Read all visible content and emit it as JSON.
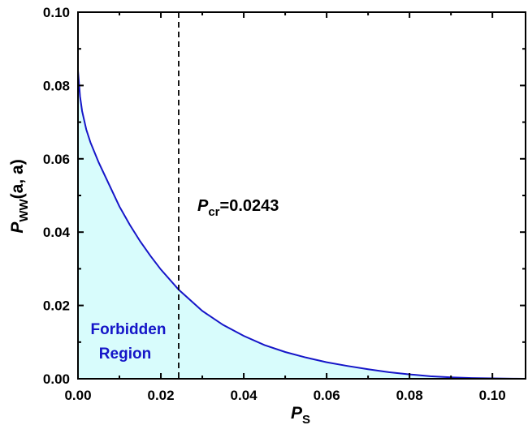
{
  "chart_data": {
    "type": "area",
    "xlabel": {
      "main": "P",
      "sub": "S"
    },
    "ylabel": {
      "main": "P",
      "sub": "WW",
      "suffix": "(a, a)"
    },
    "xlim": [
      0,
      0.108
    ],
    "ylim": [
      0,
      0.1
    ],
    "xticks": [
      "0.00",
      "0.02",
      "0.04",
      "0.06",
      "0.08",
      "0.10"
    ],
    "yticks": [
      "0.00",
      "0.02",
      "0.04",
      "0.06",
      "0.08",
      "0.10"
    ],
    "xtick_values": [
      0,
      0.02,
      0.04,
      0.06,
      0.08,
      0.1
    ],
    "ytick_values": [
      0,
      0.02,
      0.04,
      0.06,
      0.08,
      0.1
    ],
    "series": [
      {
        "x": [
          0,
          0.0005,
          0.001,
          0.002,
          0.003,
          0.005,
          0.0075,
          0.01,
          0.0125,
          0.015,
          0.0175,
          0.02,
          0.0243,
          0.03,
          0.035,
          0.04,
          0.045,
          0.05,
          0.055,
          0.06,
          0.065,
          0.07,
          0.075,
          0.08,
          0.085,
          0.09,
          0.095,
          0.1,
          0.105,
          0.108
        ],
        "y": [
          0.084,
          0.077,
          0.073,
          0.068,
          0.0645,
          0.059,
          0.053,
          0.047,
          0.042,
          0.0375,
          0.0335,
          0.0298,
          0.0243,
          0.0185,
          0.0147,
          0.0117,
          0.0092,
          0.0073,
          0.0058,
          0.0045,
          0.0035,
          0.0026,
          0.0018,
          0.0012,
          0.0007,
          0.0004,
          0.0002,
          0.0001,
          3e-05,
          0.0
        ]
      }
    ],
    "colors": {
      "curve": "#1515c8",
      "fill": "#d8fcfc",
      "region_label": "#1515c8",
      "critical_line": "#000000"
    },
    "critical": {
      "x": 0.0243,
      "label_main": "P",
      "label_sub": "cr",
      "label_value": "=0.0243"
    },
    "region_label": [
      "Forbidden",
      "Region"
    ],
    "grid": false
  }
}
